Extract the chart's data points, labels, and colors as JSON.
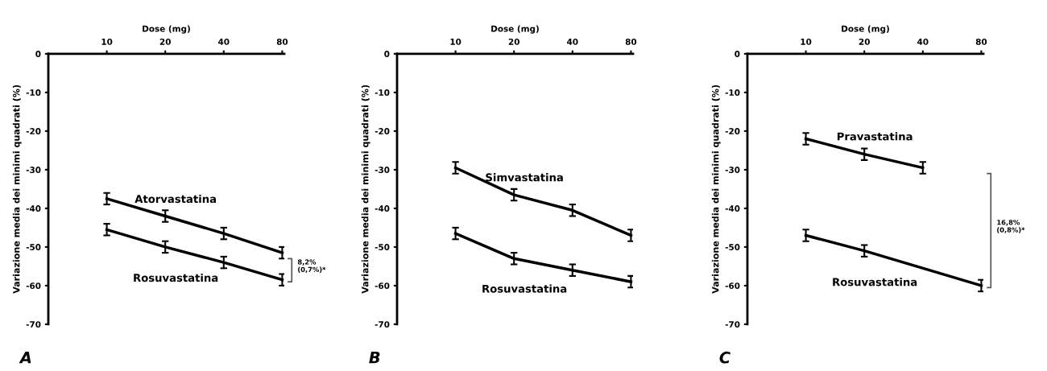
{
  "chart_data": [
    {
      "type": "line",
      "xlabel": "Dose (mg)",
      "ylabel": "Variazione media dei minimi quadrati (%)",
      "x": [
        10,
        20,
        40,
        80
      ],
      "log": "x",
      "xlim": [
        5,
        82
      ],
      "xticks": [
        10,
        20,
        40,
        80
      ],
      "ylim": [
        -70,
        0
      ],
      "yticks": [
        0,
        -10,
        -20,
        -30,
        -40,
        -50,
        -60,
        -70
      ],
      "grid": false,
      "legend": false,
      "marker": "none",
      "line_style": "solid",
      "series": [
        {
          "name": "Atorvastatina",
          "color": "#000000",
          "values": [
            -37.5,
            -42,
            -46.5,
            -51.5
          ],
          "errors": [
            1.5,
            1.5,
            1.5,
            1.5
          ]
        },
        {
          "name": "Rosuvastatina",
          "color": "#000000",
          "values": [
            -45.5,
            -50,
            -54,
            -58.5
          ],
          "errors": [
            1.5,
            1.5,
            1.5,
            1.5
          ]
        }
      ],
      "annotations": [
        "A",
        "8,2%\n(0,7%)*"
      ]
    },
    {
      "type": "line",
      "xlabel": "Dose (mg)",
      "ylabel": "Variazione media dei minimi quadrati (%)",
      "x": [
        10,
        20,
        40,
        80
      ],
      "log": "x",
      "xlim": [
        5,
        82
      ],
      "xticks": [
        10,
        20,
        40,
        80
      ],
      "ylim": [
        -70,
        0
      ],
      "yticks": [
        0,
        -10,
        -20,
        -30,
        -40,
        -50,
        -60,
        -70
      ],
      "grid": false,
      "legend": false,
      "marker": "none",
      "line_style": "solid",
      "series": [
        {
          "name": "Simvastatina",
          "color": "#000000",
          "values": [
            -29.5,
            -36.5,
            -40.5,
            -47
          ],
          "errors": [
            1.5,
            1.5,
            1.5,
            1.5
          ]
        },
        {
          "name": "Rosuvastatina",
          "color": "#000000",
          "values": [
            -46.5,
            -53,
            -56,
            -59
          ],
          "errors": [
            1.5,
            1.5,
            1.5,
            1.5
          ]
        }
      ],
      "annotations": [
        "B"
      ]
    },
    {
      "type": "line",
      "xlabel": "Dose (mg)",
      "ylabel": "Variazione media dei minimi quadrati (%)",
      "log": "x",
      "xlim": [
        5,
        82
      ],
      "xticks": [
        10,
        20,
        40,
        80
      ],
      "ylim": [
        -70,
        0
      ],
      "yticks": [
        0,
        -10,
        -20,
        -30,
        -40,
        -50,
        -60,
        -70
      ],
      "grid": false,
      "legend": false,
      "marker": "none",
      "line_style": "solid",
      "series": [
        {
          "name": "Pravastatina",
          "color": "#000000",
          "x": [
            10,
            20,
            40
          ],
          "values": [
            -22,
            -26,
            -29.5
          ],
          "errors": [
            1.5,
            1.5,
            1.5
          ]
        },
        {
          "name": "Rosuvastatina",
          "color": "#000000",
          "x": [
            10,
            20,
            80
          ],
          "values": [
            -47,
            -51,
            -60
          ],
          "errors": [
            1.5,
            1.5,
            1.5
          ]
        }
      ],
      "annotations": [
        "C",
        "16,8%\n(0,8%)*"
      ]
    }
  ]
}
